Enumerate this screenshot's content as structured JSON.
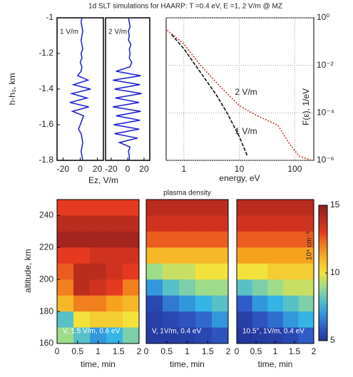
{
  "chart_data": [
    {
      "type": "profile",
      "title": "1d SLT simulations for HAARP: T =0.4 eV, E =1, 2 V/m @ MZ",
      "ylabel": "h-h₀, km",
      "xlabel": "Ez, V/m",
      "ylim": [
        -1.8,
        -1
      ],
      "yticks": [
        -1,
        -1.2,
        -1.4,
        -1.6,
        -1.8
      ],
      "xlim": [
        -27,
        27
      ],
      "xticks": [
        -20,
        0,
        20
      ],
      "h": [
        -1,
        -1.025,
        -1.05,
        -1.075,
        -1.1,
        -1.125,
        -1.15,
        -1.175,
        -1.2,
        -1.225,
        -1.25,
        -1.275,
        -1.3,
        -1.325,
        -1.35,
        -1.375,
        -1.4,
        -1.425,
        -1.45,
        -1.475,
        -1.5,
        -1.525,
        -1.55,
        -1.575,
        -1.6,
        -1.625,
        -1.65,
        -1.675,
        -1.7,
        -1.725,
        -1.75,
        -1.775,
        -1.8
      ],
      "series": [
        {
          "name": "1 V/m",
          "color": "#1a1ad6",
          "values": [
            2,
            1,
            2,
            3,
            2,
            1,
            2,
            3,
            1,
            2,
            0,
            2,
            1,
            -3,
            9,
            -8,
            12,
            -10,
            8,
            -12,
            10,
            -9,
            4,
            2,
            0,
            -2,
            1,
            2,
            3,
            2,
            1,
            2,
            3
          ]
        },
        {
          "name": "2 V/m",
          "color": "#1a1ad6",
          "values": [
            1,
            2,
            3,
            1,
            2,
            1,
            4,
            2,
            3,
            2,
            5,
            3,
            -14,
            16,
            -18,
            15,
            -16,
            17,
            -15,
            14,
            -18,
            16,
            -14,
            15,
            -17,
            14,
            -16,
            12,
            -10,
            3,
            1,
            2,
            2
          ]
        }
      ]
    },
    {
      "type": "line",
      "log": true,
      "grid": true,
      "xlabel": "energy, eV",
      "ylabel": "F(ε), 1/eV",
      "xlim": [
        0.48,
        220
      ],
      "xticks": [
        1,
        10,
        100
      ],
      "ylim": [
        1e-06,
        1
      ],
      "yticks": [
        {
          "value": 1,
          "label": "10⁰"
        },
        {
          "value": 0.01,
          "label": "10⁻²"
        },
        {
          "value": 0.0001,
          "label": "10⁻⁴"
        },
        {
          "value": 1e-06,
          "label": "10⁻⁶"
        }
      ],
      "series": [
        {
          "name": "2 V/m",
          "color": "#c0392b",
          "dash": "2,2",
          "x": [
            0.5,
            1,
            2,
            5,
            10,
            20,
            50,
            80,
            120,
            200
          ],
          "values": [
            0.3,
            0.08,
            0.01,
            0.001,
            0.0002,
            8e-05,
            3e-05,
            5e-06,
            1.5e-06,
            1e-06
          ]
        },
        {
          "name": "1 V/m",
          "color": "#111111",
          "dash": "5,2",
          "x": [
            0.6,
            1,
            2,
            4,
            6,
            10,
            14
          ],
          "values": [
            0.2,
            0.05,
            0.005,
            0.0005,
            0.0001,
            1e-05,
            1.5e-06
          ]
        }
      ]
    },
    {
      "type": "heatmap",
      "ylabel": "altitude, km",
      "xlabel": "time, min",
      "annotation": "V, 1.5 V/m, 0.6 eV",
      "xlim": [
        0,
        2
      ],
      "xticks": [
        0,
        0.5,
        1,
        1.5,
        2
      ],
      "ylim": [
        160,
        250
      ],
      "yticks": [
        160,
        180,
        200,
        220,
        240
      ],
      "x": [
        0.2,
        0.6,
        1,
        1.4,
        1.8
      ],
      "y": [
        245,
        235,
        225,
        215,
        205,
        195,
        185,
        175,
        165
      ],
      "values": [
        [
          13,
          13,
          13,
          13,
          13
        ],
        [
          14,
          14,
          14,
          14,
          14
        ],
        [
          14.5,
          14.5,
          14.5,
          14.5,
          14.5
        ],
        [
          13,
          13,
          13.5,
          13.5,
          13.5
        ],
        [
          12.5,
          14,
          14,
          13.5,
          13
        ],
        [
          12,
          14,
          13.5,
          13,
          12
        ],
        [
          11,
          12,
          12,
          11.5,
          11
        ],
        [
          8,
          10,
          10.5,
          10.5,
          10
        ],
        [
          9,
          8,
          7,
          7.5,
          8.5
        ]
      ]
    },
    {
      "type": "heatmap",
      "title": "plasma density",
      "xlabel": "time, min",
      "annotation": "V,  1V/m,  0.4 eV",
      "xlim": [
        0,
        2
      ],
      "xticks": [
        0,
        0.5,
        1,
        1.5,
        2
      ],
      "ylim": [
        160,
        250
      ],
      "x": [
        0.2,
        0.6,
        1,
        1.4,
        1.8
      ],
      "y": [
        245,
        235,
        225,
        215,
        205,
        195,
        185,
        175,
        165
      ],
      "values": [
        [
          14,
          14,
          14,
          14,
          14
        ],
        [
          13.5,
          13.5,
          13.5,
          13.5,
          13.5
        ],
        [
          12.5,
          12.5,
          12.5,
          12.5,
          12.5
        ],
        [
          11,
          11,
          11,
          11,
          11
        ],
        [
          9,
          9.5,
          9.5,
          10,
          10
        ],
        [
          7,
          8,
          8.5,
          9,
          9
        ],
        [
          5.5,
          6.5,
          7,
          7.5,
          8
        ],
        [
          5.3,
          5.5,
          5.8,
          6.2,
          7
        ],
        [
          5.2,
          5.2,
          5.3,
          5.5,
          5.8
        ]
      ]
    },
    {
      "type": "heatmap",
      "xlabel": "time, min",
      "annotation": "10.5°, 1V/m, 0.4 eV",
      "xlim": [
        0,
        2
      ],
      "xticks": [
        0,
        0.5,
        1,
        1.5,
        2
      ],
      "ylim": [
        160,
        250
      ],
      "x": [
        0.2,
        0.6,
        1,
        1.4,
        1.8
      ],
      "y": [
        245,
        235,
        225,
        215,
        205,
        195,
        185,
        175,
        165
      ],
      "values": [
        [
          14,
          14,
          14,
          14,
          14
        ],
        [
          13.5,
          13.5,
          13.5,
          13.5,
          13.5
        ],
        [
          12.5,
          12.5,
          12.5,
          12.5,
          12.5
        ],
        [
          11.5,
          11.5,
          11.5,
          11.5,
          11.5
        ],
        [
          10,
          10,
          10.5,
          10.5,
          10.5
        ],
        [
          8,
          8.5,
          9,
          9.5,
          9.5
        ],
        [
          6,
          7,
          7.5,
          8,
          8.5
        ],
        [
          5.3,
          5.8,
          6.3,
          7,
          7.5
        ],
        [
          5.1,
          5.2,
          5.3,
          5.5,
          6
        ]
      ],
      "colorbar": {
        "label": "10⁴ cm⁻³",
        "zlim": [
          5,
          15
        ],
        "zticks": [
          5,
          10,
          15
        ]
      }
    }
  ]
}
